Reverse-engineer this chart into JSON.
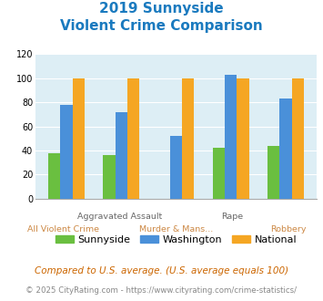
{
  "title_line1": "2019 Sunnyside",
  "title_line2": "Violent Crime Comparison",
  "title_color": "#1a7abf",
  "categories": [
    "All Violent Crime",
    "Aggravated Assault",
    "Murder & Mans...",
    "Rape",
    "Robbery"
  ],
  "row1_labels": [
    "",
    "Aggravated Assault",
    "",
    "Rape",
    ""
  ],
  "row2_labels": [
    "All Violent Crime",
    "",
    "Murder & Mans...",
    "",
    "Robbery"
  ],
  "sunnyside": [
    38,
    36,
    0,
    42,
    44
  ],
  "washington": [
    78,
    72,
    52,
    103,
    83
  ],
  "national": [
    100,
    100,
    100,
    100,
    100
  ],
  "bar_colors": {
    "sunnyside": "#6abf40",
    "washington": "#4a90d9",
    "national": "#f5a623"
  },
  "ylim": [
    0,
    120
  ],
  "yticks": [
    0,
    20,
    40,
    60,
    80,
    100,
    120
  ],
  "plot_bg": "#ddeef5",
  "fig_bg": "#ffffff",
  "legend_labels": [
    "Sunnyside",
    "Washington",
    "National"
  ],
  "footnote1": "Compared to U.S. average. (U.S. average equals 100)",
  "footnote2": "© 2025 CityRating.com - https://www.cityrating.com/crime-statistics/",
  "footnote1_color": "#cc6600",
  "footnote2_color": "#888888",
  "row1_label_color": "#666666",
  "row2_label_color": "#cc8844"
}
